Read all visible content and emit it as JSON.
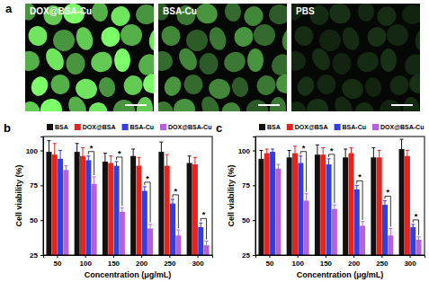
{
  "image_panel": {
    "panel_label": "a",
    "images": [
      {
        "label": "DOX@BSA-Cu"
      },
      {
        "label": "BSA-Cu"
      },
      {
        "label": "PBS"
      }
    ]
  },
  "chart_data": [
    {
      "type": "bar",
      "annotations": [
        {
          "text": "b"
        },
        {
          "text": "*",
          "category": "100"
        },
        {
          "text": "*",
          "category": "150"
        },
        {
          "text": "*",
          "category": "200"
        },
        {
          "text": "*",
          "category": "250"
        },
        {
          "text": "*",
          "category": "300"
        }
      ],
      "x_label": "Concentration (μg/mL)",
      "y_label": "Cell viability (%)",
      "categories": [
        "50",
        "100",
        "150",
        "200",
        "250",
        "300"
      ],
      "series": [
        {
          "name": "BSA",
          "color": "#111111",
          "values": [
            99,
            99,
            92,
            96,
            99,
            91
          ],
          "errors": [
            8,
            6,
            6,
            5,
            7,
            5
          ]
        },
        {
          "name": "DOX@BSA",
          "color": "#e8231d",
          "values": [
            97,
            96,
            91,
            89,
            89,
            90
          ],
          "errors": [
            8,
            6,
            5,
            6,
            8,
            5
          ]
        },
        {
          "name": "BSA-Cu",
          "color": "#2f3fe0",
          "values": [
            94,
            93,
            89,
            71,
            62,
            45
          ],
          "errors": [
            6,
            3,
            3,
            3,
            3,
            3
          ]
        },
        {
          "name": "DOX@BSA-Cu",
          "color": "#b660de",
          "values": [
            86,
            76,
            56,
            44,
            39,
            32
          ],
          "errors": [
            3,
            5,
            3,
            3,
            4,
            3
          ]
        }
      ],
      "ylim": [
        25,
        110
      ],
      "yticks": [
        25,
        50,
        75,
        100
      ],
      "grid": false,
      "legend": "top"
    },
    {
      "type": "bar",
      "annotations": [
        {
          "text": "c"
        },
        {
          "text": "*",
          "category": "100"
        },
        {
          "text": "*",
          "category": "150"
        },
        {
          "text": "*",
          "category": "200"
        },
        {
          "text": "*",
          "category": "250"
        },
        {
          "text": "*",
          "category": "300"
        }
      ],
      "x_label": "Concentration (μg/mL)",
      "y_label": "Cell viability (%)",
      "categories": [
        "50",
        "100",
        "150",
        "200",
        "250",
        "300"
      ],
      "series": [
        {
          "name": "BSA",
          "color": "#111111",
          "values": [
            94,
            95,
            97,
            95,
            95,
            101
          ],
          "errors": [
            6,
            5,
            7,
            6,
            7,
            7
          ]
        },
        {
          "name": "DOX@BSA",
          "color": "#e8231d",
          "values": [
            98,
            98,
            97,
            98,
            95,
            96
          ],
          "errors": [
            3,
            5,
            5,
            4,
            5,
            4
          ]
        },
        {
          "name": "BSA-Cu",
          "color": "#2f3fe0",
          "values": [
            99,
            91,
            90,
            72,
            61,
            45
          ],
          "errors": [
            2,
            5,
            4,
            3,
            3,
            2
          ]
        },
        {
          "name": "DOX@BSA-Cu",
          "color": "#b660de",
          "values": [
            87,
            64,
            58,
            46,
            39,
            36
          ],
          "errors": [
            3,
            5,
            3,
            3,
            5,
            2
          ]
        }
      ],
      "ylim": [
        25,
        110
      ],
      "yticks": [
        25,
        50,
        75,
        100
      ],
      "grid": false,
      "legend": "top"
    }
  ]
}
